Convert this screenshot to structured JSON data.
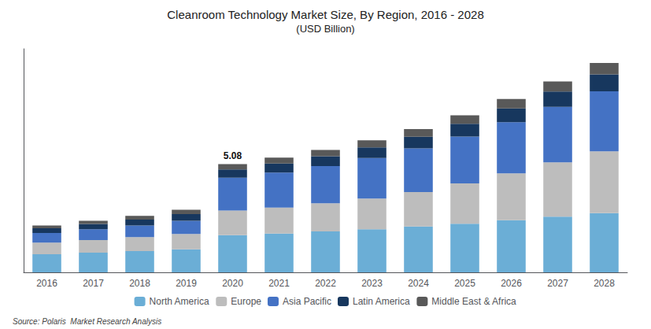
{
  "chart_data": {
    "type": "bar",
    "stacked": true,
    "title": "Cleanroom Technology Market Size, By Region, 2016 - 2028",
    "subtitle": "(USD Billion)",
    "categories": [
      "2016",
      "2017",
      "2018",
      "2019",
      "2020",
      "2021",
      "2022",
      "2023",
      "2024",
      "2025",
      "2026",
      "2027",
      "2028"
    ],
    "series": [
      {
        "name": "North America",
        "color": "#6BAED6",
        "values": [
          0.85,
          0.92,
          1.0,
          1.08,
          1.75,
          1.82,
          1.92,
          2.02,
          2.15,
          2.28,
          2.45,
          2.62,
          2.78
        ]
      },
      {
        "name": "Europe",
        "color": "#BDBDBD",
        "values": [
          0.55,
          0.6,
          0.65,
          0.72,
          1.15,
          1.22,
          1.32,
          1.45,
          1.62,
          1.9,
          2.2,
          2.55,
          2.9
        ]
      },
      {
        "name": "Asia Pacific",
        "color": "#4472C4",
        "values": [
          0.45,
          0.5,
          0.55,
          0.62,
          1.55,
          1.65,
          1.75,
          1.9,
          2.05,
          2.2,
          2.4,
          2.6,
          2.82
        ]
      },
      {
        "name": "Latin America",
        "color": "#17375E",
        "values": [
          0.22,
          0.25,
          0.28,
          0.32,
          0.38,
          0.42,
          0.46,
          0.5,
          0.55,
          0.6,
          0.65,
          0.72,
          0.8
        ]
      },
      {
        "name": "Middle East & Africa",
        "color": "#595959",
        "values": [
          0.13,
          0.15,
          0.17,
          0.2,
          0.25,
          0.28,
          0.3,
          0.33,
          0.36,
          0.4,
          0.44,
          0.48,
          0.53
        ]
      }
    ],
    "annotations": [
      {
        "category": "2020",
        "text": "5.08"
      }
    ],
    "source": "Source: Polaris  Market Research Analysis",
    "ylim": [
      0,
      10.5
    ],
    "tick_labels": "x",
    "grid": false,
    "legend": "bottom"
  }
}
